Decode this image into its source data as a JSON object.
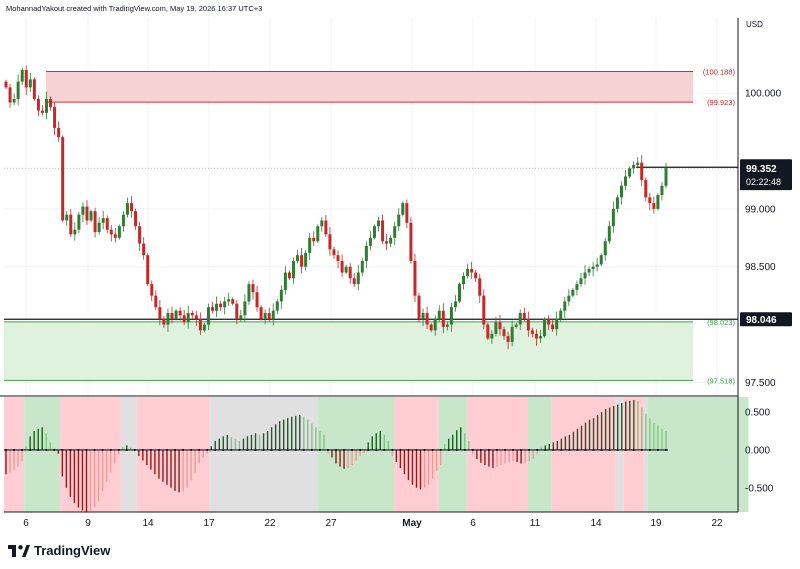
{
  "header": {
    "attribution": "MohannadYakout created with TradingView.com, May 19, 2026 16:37 UTC+3"
  },
  "footer": {
    "brand": "TradingView"
  },
  "colors": {
    "up": "#2e7d32",
    "down": "#c62828",
    "bull_bg": "#c8e6c9",
    "bear_bg": "#ffcdd2",
    "neutral_bg": "#e0e0e0",
    "supply_zone": "#f6d2d5",
    "demand_zone": "#dff2dd",
    "label_bg": "#131722"
  },
  "chart_data": [
    {
      "type": "candlestick",
      "currency": "USD",
      "y_ticks": [
        "100.000",
        "99.000",
        "98.500",
        "97.500"
      ],
      "ylim": [
        97.4,
        100.65
      ],
      "x_ticks": [
        "6",
        "9",
        "14",
        "17",
        "22",
        "27",
        "May",
        "6",
        "11",
        "14",
        "19",
        "22"
      ],
      "zones": [
        {
          "kind": "supply",
          "top": 100.188,
          "bottom": 99.923,
          "labels": [
            "(100.188)",
            "(99.923)"
          ]
        },
        {
          "kind": "demand",
          "top": 98.023,
          "bottom": 97.518,
          "labels": [
            "(98.023)",
            "(97.518)"
          ]
        }
      ],
      "level_lines": [
        {
          "value": 99.36,
          "label": "99.360"
        },
        {
          "value": 98.046,
          "label": "98.046"
        }
      ],
      "last_price": {
        "value": 99.352,
        "label": "99.352",
        "countdown": "02:22:48"
      },
      "closes": [
        100.05,
        99.92,
        99.95,
        100.1,
        100.2,
        100.05,
        100.12,
        99.95,
        99.85,
        99.83,
        99.95,
        99.88,
        99.7,
        99.62,
        98.9,
        98.95,
        98.78,
        98.82,
        98.95,
        99.02,
        98.9,
        98.98,
        98.8,
        98.88,
        98.92,
        98.82,
        98.78,
        98.75,
        98.85,
        98.95,
        99.05,
        98.98,
        98.85,
        98.7,
        98.6,
        98.35,
        98.25,
        98.15,
        98.05,
        98.0,
        98.1,
        98.05,
        98.12,
        98.08,
        98.02,
        98.1,
        98.08,
        98.05,
        97.95,
        98.0,
        98.15,
        98.12,
        98.18,
        98.15,
        98.2,
        98.22,
        98.18,
        98.05,
        98.08,
        98.2,
        98.35,
        98.28,
        98.15,
        98.05,
        98.1,
        98.05,
        98.12,
        98.2,
        98.3,
        98.45,
        98.4,
        98.55,
        98.6,
        98.5,
        98.62,
        98.75,
        98.72,
        98.85,
        98.9,
        98.78,
        98.65,
        98.6,
        98.55,
        98.45,
        98.5,
        98.4,
        98.35,
        98.45,
        98.55,
        98.68,
        98.75,
        98.85,
        98.9,
        98.72,
        98.7,
        98.75,
        98.85,
        98.95,
        99.05,
        98.88,
        98.55,
        98.25,
        98.05,
        98.1,
        98.0,
        97.95,
        98.05,
        98.12,
        97.98,
        98.0,
        98.15,
        98.2,
        98.35,
        98.42,
        98.48,
        98.45,
        98.4,
        98.25,
        98.0,
        97.88,
        97.92,
        98.02,
        97.96,
        97.9,
        97.85,
        97.98,
        98.0,
        98.1,
        98.05,
        97.95,
        97.92,
        97.88,
        97.9,
        98.05,
        98.0,
        97.96,
        98.05,
        98.12,
        98.2,
        98.25,
        98.3,
        98.35,
        98.4,
        98.45,
        98.48,
        98.5,
        98.52,
        98.6,
        98.72,
        98.85,
        99.0,
        99.1,
        99.2,
        99.28,
        99.35,
        99.38,
        99.4,
        99.25,
        99.1,
        99.05,
        99.0,
        99.12,
        99.2,
        99.352
      ]
    },
    {
      "type": "histogram",
      "y_ticks": [
        "0.500",
        "0.000",
        "-0.500"
      ],
      "ylim": [
        -0.82,
        0.7
      ],
      "values": [
        -0.32,
        -0.3,
        -0.26,
        -0.22,
        -0.15,
        0.05,
        0.18,
        0.25,
        0.28,
        0.3,
        0.22,
        0.1,
        0.02,
        -0.05,
        -0.35,
        -0.5,
        -0.62,
        -0.7,
        -0.76,
        -0.8,
        -0.82,
        -0.8,
        -0.76,
        -0.68,
        -0.55,
        -0.42,
        -0.3,
        -0.18,
        -0.06,
        0.04,
        0.06,
        0.03,
        -0.02,
        -0.08,
        -0.14,
        -0.2,
        -0.26,
        -0.32,
        -0.38,
        -0.42,
        -0.46,
        -0.5,
        -0.54,
        -0.56,
        -0.55,
        -0.5,
        -0.4,
        -0.3,
        -0.18,
        -0.1,
        -0.05,
        0.05,
        0.12,
        0.15,
        0.18,
        0.2,
        0.17,
        0.14,
        0.12,
        0.15,
        0.18,
        0.2,
        0.22,
        0.2,
        0.22,
        0.25,
        0.3,
        0.34,
        0.38,
        0.4,
        0.42,
        0.44,
        0.45,
        0.46,
        0.44,
        0.4,
        0.35,
        0.3,
        0.25,
        0.2,
        -0.05,
        -0.1,
        -0.18,
        -0.22,
        -0.25,
        -0.24,
        -0.2,
        -0.14,
        -0.08,
        -0.04,
        0.1,
        0.18,
        0.22,
        0.25,
        0.2,
        0.12,
        -0.08,
        -0.16,
        -0.24,
        -0.32,
        -0.4,
        -0.46,
        -0.5,
        -0.52,
        -0.5,
        -0.46,
        -0.38,
        -0.28,
        -0.2,
        0.08,
        0.15,
        0.2,
        0.26,
        0.3,
        0.22,
        0.12,
        -0.06,
        -0.12,
        -0.17,
        -0.2,
        -0.22,
        -0.24,
        -0.22,
        -0.2,
        -0.18,
        -0.16,
        -0.15,
        -0.16,
        -0.18,
        -0.17,
        -0.15,
        -0.12,
        -0.06,
        0.03,
        0.06,
        0.08,
        0.1,
        0.12,
        0.15,
        0.18,
        0.2,
        0.24,
        0.28,
        0.32,
        0.36,
        0.4,
        0.42,
        0.46,
        0.5,
        0.54,
        0.56,
        0.58,
        0.6,
        0.62,
        0.64,
        0.65,
        0.66,
        0.65,
        0.56,
        0.48,
        0.42,
        0.36,
        0.32,
        0.28,
        0.25
      ],
      "background_bands": [
        {
          "from": 0,
          "to": 4,
          "tone": "bear"
        },
        {
          "from": 5,
          "to": 13,
          "tone": "bull"
        },
        {
          "from": 14,
          "to": 28,
          "tone": "bear"
        },
        {
          "from": 29,
          "to": 32,
          "tone": "neutral"
        },
        {
          "from": 33,
          "to": 50,
          "tone": "bear"
        },
        {
          "from": 51,
          "to": 77,
          "tone": "neutral"
        },
        {
          "from": 78,
          "to": 96,
          "tone": "bull"
        },
        {
          "from": 97,
          "to": 107,
          "tone": "bear"
        },
        {
          "from": 108,
          "to": 114,
          "tone": "bull"
        },
        {
          "from": 115,
          "to": 129,
          "tone": "bear"
        },
        {
          "from": 130,
          "to": 135,
          "tone": "bull"
        },
        {
          "from": 136,
          "to": 151,
          "tone": "bear"
        },
        {
          "from": 152,
          "to": 153,
          "tone": "neutral"
        },
        {
          "from": 154,
          "to": 158,
          "tone": "bear"
        },
        {
          "from": 159,
          "to": 159,
          "tone": "neutral"
        },
        {
          "from": 160,
          "to": 184,
          "tone": "bull"
        }
      ]
    }
  ]
}
